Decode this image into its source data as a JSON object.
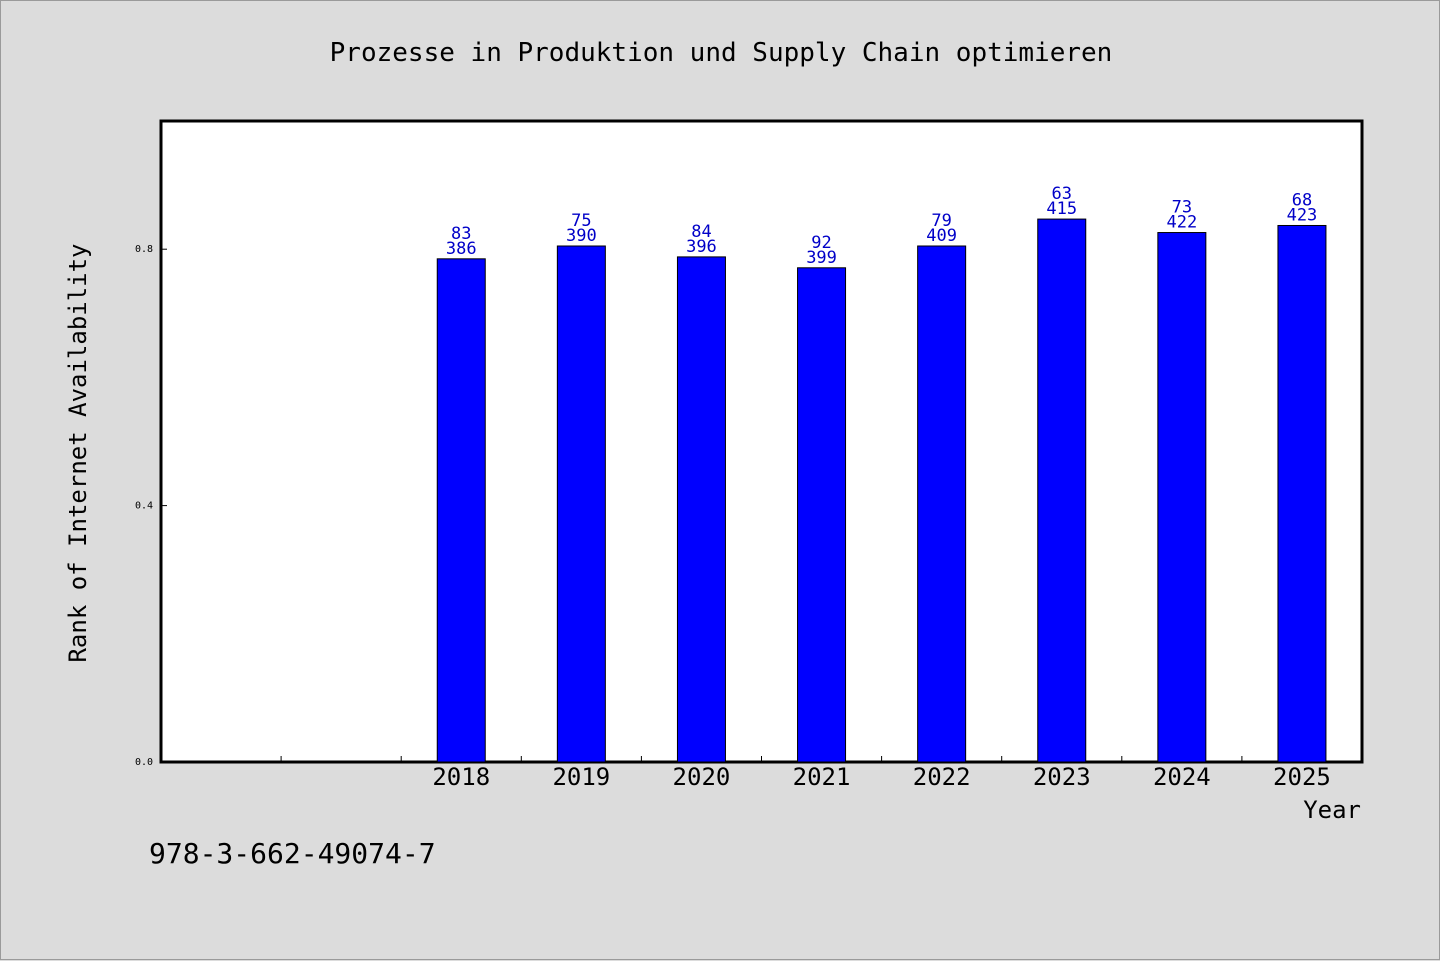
{
  "chart_data": {
    "type": "bar",
    "title": "Prozesse in Produktion und Supply Chain optimieren",
    "xlabel": "Year",
    "ylabel": "Rank of Internet Availability",
    "categories": [
      "",
      "",
      "2018",
      "2019",
      "2020",
      "2021",
      "2022",
      "2023",
      "2024",
      "2025"
    ],
    "values": [
      null,
      null,
      0.785,
      0.805,
      0.788,
      0.771,
      0.805,
      0.847,
      0.826,
      0.837
    ],
    "bar_labels_top": [
      "",
      "",
      "83",
      "75",
      "84",
      "92",
      "79",
      "63",
      "73",
      "68"
    ],
    "bar_labels_bottom": [
      "",
      "",
      "386",
      "390",
      "396",
      "399",
      "409",
      "415",
      "422",
      "423"
    ],
    "ylim": [
      0,
      1.0
    ],
    "yticks": [
      "0.0",
      "0.4",
      "0.8"
    ],
    "ytick_values": [
      0.0,
      0.4,
      0.8
    ],
    "bar_color": "#0000ff",
    "label_color": "#0000c8",
    "grid": false
  },
  "footer": {
    "isbn": "978-3-662-49074-7"
  }
}
